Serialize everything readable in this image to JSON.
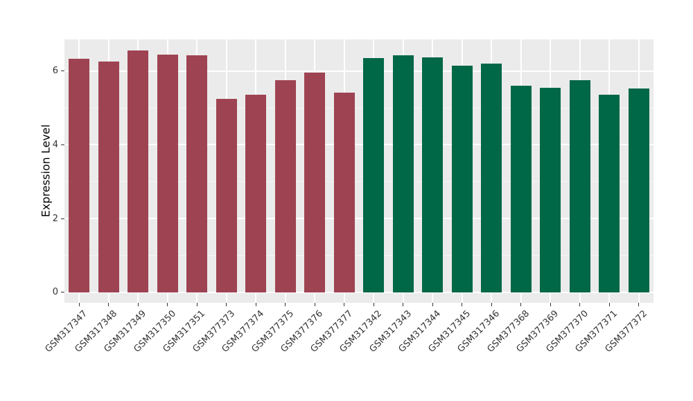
{
  "figure": {
    "background": "#ffffff",
    "panel_background": "#ebebeb",
    "grid_major_color": "#ffffff",
    "grid_minor_color": "#f5f5f5",
    "axis_text_color": "#333333",
    "axis_title_color": "#000000"
  },
  "chart_data": {
    "type": "bar",
    "title": "",
    "xlabel": "",
    "ylabel": "Expression Level",
    "ylim": [
      0,
      6.86
    ],
    "yticks": [
      0,
      2,
      4,
      6
    ],
    "yticks_minor": [
      1,
      3,
      5
    ],
    "grid": true,
    "legend": false,
    "x_tick_rotation": 45,
    "categories": [
      "GSM317347",
      "GSM317348",
      "GSM317349",
      "GSM317350",
      "GSM317351",
      "GSM377373",
      "GSM377374",
      "GSM377375",
      "GSM377376",
      "GSM377377",
      "GSM317342",
      "GSM317343",
      "GSM317344",
      "GSM317345",
      "GSM317346",
      "GSM377368",
      "GSM377369",
      "GSM377370",
      "GSM377371",
      "GSM377372"
    ],
    "values": [
      6.33,
      6.25,
      6.55,
      6.44,
      6.42,
      5.24,
      5.36,
      5.76,
      5.95,
      5.42,
      6.35,
      6.43,
      6.37,
      6.15,
      6.21,
      5.61,
      5.55,
      5.75,
      5.36,
      5.52
    ],
    "bar_colors": [
      "#9e4352",
      "#9e4352",
      "#9e4352",
      "#9e4352",
      "#9e4352",
      "#9e4352",
      "#9e4352",
      "#9e4352",
      "#9e4352",
      "#9e4352",
      "#006747",
      "#006747",
      "#006747",
      "#006747",
      "#006747",
      "#006747",
      "#006747",
      "#006747",
      "#006747",
      "#006747"
    ],
    "group_colors": {
      "maroon_group": "#9e4352",
      "green_group": "#006747"
    }
  }
}
